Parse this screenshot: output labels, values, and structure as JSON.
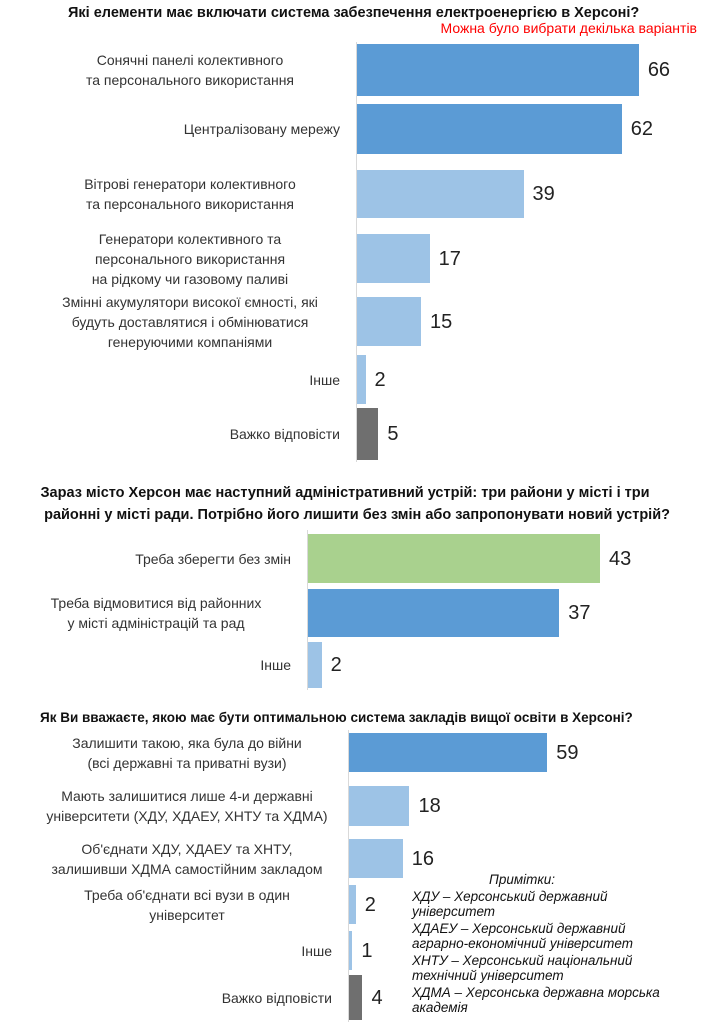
{
  "colors": {
    "dark_blue": "#5b9bd5",
    "light_blue": "#9dc3e6",
    "green": "#a9d18e",
    "gray": "#6f6f6f"
  },
  "chart_data": [
    {
      "type": "bar",
      "orientation": "horizontal",
      "title": "Які елементи має включати система забезпечення електроенергією в Херсоні?",
      "subtitle": "Можна було вибрати декілька варіантів",
      "categories": [
        "Сонячні панелі колективного\nта персонального використання",
        "Централізовану мережу",
        "Вітрові генератори колективного\nта персонального використання",
        "Генератори колективного та\nперсонального використання\nна рідкому чи газовому паливі",
        "Змінні акумулятори високої ємності, які\nбудуть доставлятися і обмінюватися\nгенеруючими компаніями",
        "Інше",
        "Важко відповісти"
      ],
      "values": [
        66,
        62,
        39,
        17,
        15,
        2,
        5
      ],
      "colors": [
        "dark_blue",
        "dark_blue",
        "light_blue",
        "light_blue",
        "light_blue",
        "light_blue",
        "gray"
      ]
    },
    {
      "type": "bar",
      "orientation": "horizontal",
      "title": "Зараз місто Херсон має наступний адміністративний устрій: три райони у місті і три районні у місті ради. Потрібно його лишити без змін або запропонувати новий устрій?",
      "categories": [
        "Треба зберегти без змін",
        "Треба відмовитися від районних\nу місті адміністрацій та рад",
        "Інше"
      ],
      "values": [
        43,
        37,
        2
      ],
      "colors": [
        "green",
        "dark_blue",
        "light_blue"
      ]
    },
    {
      "type": "bar",
      "orientation": "horizontal",
      "title": "Як Ви вважаєте, якою має бути оптимальною система закладів вищої освіти в Херсоні?",
      "categories": [
        "Залишити такою, яка була до війни\n(всі державні та приватні вузи)",
        "Мають залишитися лише 4-и державні\nуніверситети (ХДУ, ХДАЕУ, ХНТУ та ХДМА)",
        "Об'єднати ХДУ, ХДАЕУ та ХНТУ,\nзалишивши ХДМА самостійним закладом",
        "Треба об'єднати всі вузи в один\nуніверситет",
        "Інше",
        "Важко відповісти"
      ],
      "values": [
        59,
        18,
        16,
        2,
        1,
        4
      ],
      "colors": [
        "dark_blue",
        "light_blue",
        "light_blue",
        "light_blue",
        "light_blue",
        "gray"
      ]
    }
  ],
  "notes": {
    "heading": "Примітки:",
    "items": [
      "ХДУ – Херсонський державний університет",
      "ХДАЕУ – Херсонський державний аграрно-економічний університет",
      "ХНТУ – Херсонський національний технічний університет",
      "ХДМА – Херсонська державна морська академія"
    ]
  }
}
